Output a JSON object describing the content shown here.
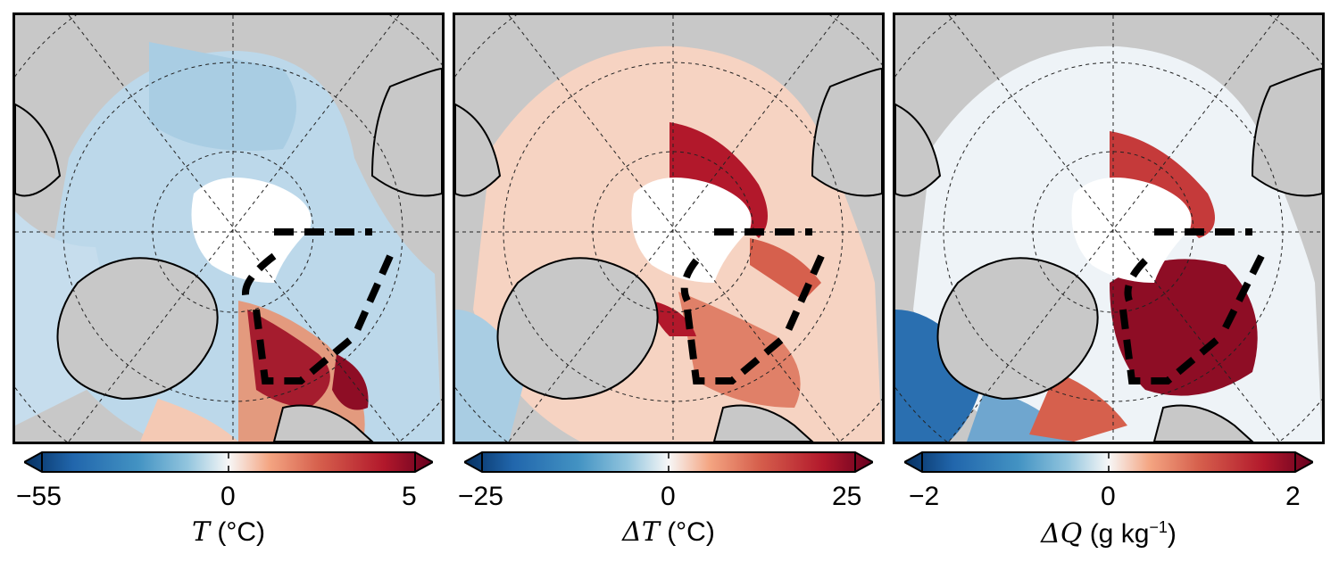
{
  "panels": [
    {
      "kind": "T",
      "colorbar": {
        "min": "−55",
        "mid": "0",
        "max": "5"
      },
      "label": {
        "symbol": "T",
        "unit": "(°C)"
      },
      "colormap": "RdBu_r",
      "colormap_colors": {
        "low": "#053061",
        "mid": "#f7f7f7",
        "high": "#67001f"
      }
    },
    {
      "kind": "dT",
      "colorbar": {
        "min": "−25",
        "mid": "0",
        "max": "25"
      },
      "label": {
        "symbol": "ΔT",
        "unit": "(°C)"
      },
      "colormap": "RdBu_r",
      "colormap_colors": {
        "low": "#053061",
        "mid": "#f7f7f7",
        "high": "#67001f"
      }
    },
    {
      "kind": "dQ",
      "colorbar": {
        "min": "−2",
        "mid": "0",
        "max": "2"
      },
      "label": {
        "symbol": "ΔQ",
        "unit": "(g kg",
        "unit_exp": "−1",
        "unit_end": ")"
      },
      "colormap": "RdBu_r",
      "colormap_colors": {
        "low": "#053061",
        "mid": "#f7f7f7",
        "high": "#67001f"
      }
    }
  ],
  "map_colors": {
    "land": "#c8c8c8",
    "ice": "#ffffff",
    "coast": "#000000",
    "ice_edge": "#999999",
    "region_box": "#000000"
  }
}
